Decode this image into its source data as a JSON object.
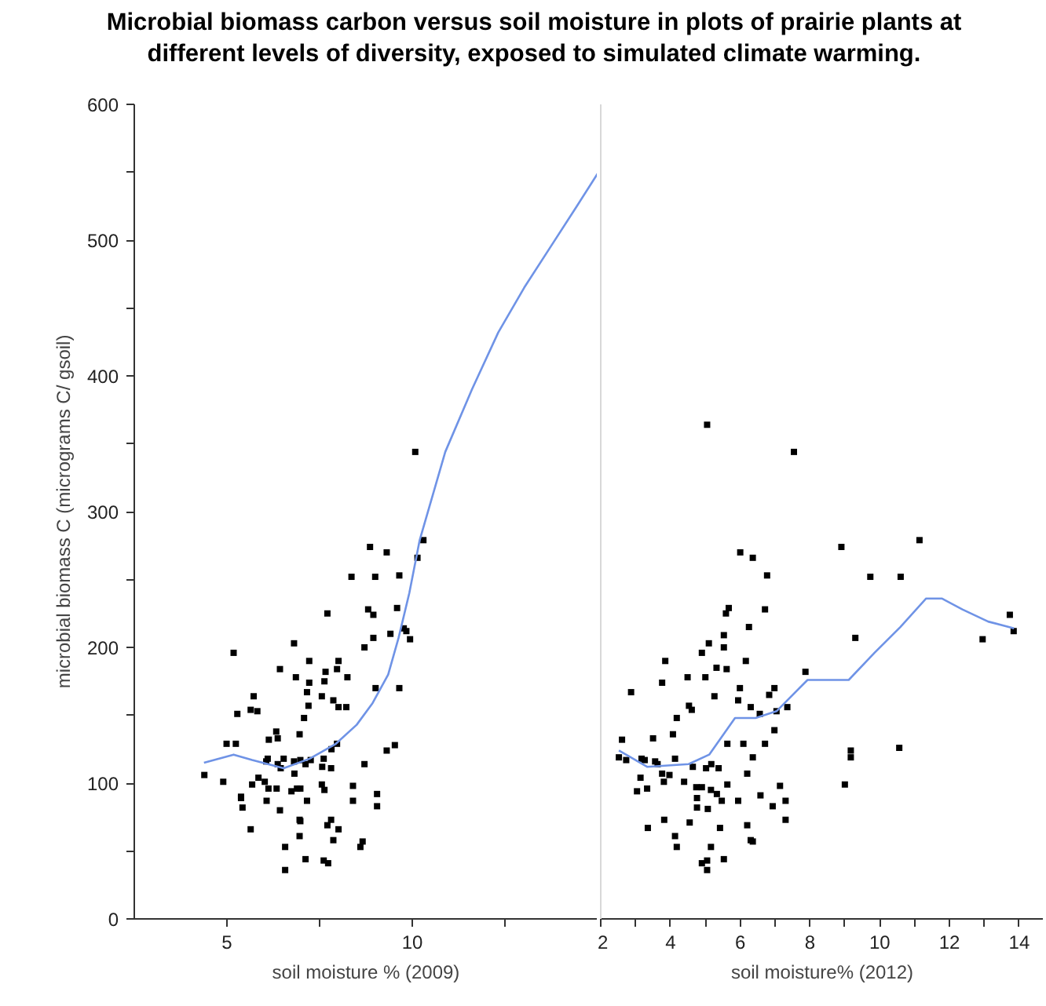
{
  "chart_data": [
    {
      "type": "scatter",
      "title": "Microbial biomass carbon versus soil moisture in plots of prairie plants at different levels of diversity, exposed to simulated climate warming.",
      "xlabel": "soil moisture % (2009)",
      "ylabel": "microbial biomass C (micrograms C/ gsoil)",
      "xlim": [
        2.5,
        15
      ],
      "xticks": [
        5,
        {
          "value": 7.5,
          "label": null
        },
        10,
        {
          "value": 12.5,
          "label": null
        },
        {
          "value": 15,
          "label": null
        }
      ],
      "ylim": [
        0,
        600
      ],
      "yticks": [
        0,
        {
          "value": 50,
          "label": null
        },
        100,
        {
          "value": 150,
          "label": null
        },
        200,
        {
          "value": 250,
          "label": null
        },
        300,
        {
          "value": 350,
          "label": null
        },
        400,
        {
          "value": 450,
          "label": null
        },
        500,
        {
          "value": 550,
          "label": null
        },
        600
      ],
      "grid": false,
      "series": [
        {
          "marker": "square",
          "color": "#000000",
          "x": [
            10.08,
            10.3,
            8.86,
            9.31,
            10.14,
            8.36,
            9.0,
            9.65,
            8.81,
            8.95,
            9.59,
            7.71,
            9.77,
            9.84,
            9.94,
            9.41,
            8.95,
            8.71,
            5.18,
            6.81,
            7.22,
            8.01,
            6.43,
            6.86,
            7.66,
            7.97,
            8.25,
            7.22,
            7.63,
            7.16,
            7.56,
            5.72,
            9.01,
            9.65,
            5.28,
            5.64,
            5.82,
            7.2,
            7.87,
            8.01,
            8.22,
            7.08,
            6.33,
            6.96,
            6.13,
            6.37,
            4.99,
            5.24,
            7.97,
            7.82,
            9.31,
            9.53,
            6.1,
            6.53,
            7.61,
            6.06,
            6.37,
            6.45,
            6.81,
            6.98,
            7.12,
            7.26,
            7.57,
            7.81,
            8.71,
            4.39,
            4.9,
            5.68,
            5.85,
            6.02,
            6.12,
            6.34,
            6.82,
            6.89,
            6.98,
            7.56,
            7.63,
            8.4,
            9.05,
            9.05,
            6.74,
            5.38,
            5.38,
            6.07,
            7.16,
            8.4,
            5.42,
            6.43,
            6.96,
            6.98,
            7.81,
            7.71,
            8.01,
            5.64,
            6.96,
            7.87,
            8.66,
            8.6,
            6.57,
            7.12,
            7.61,
            7.73,
            6.57
          ],
          "values": [
            344,
            279,
            274,
            270,
            266,
            252,
            252,
            253,
            228,
            224,
            229,
            225,
            214,
            212,
            206,
            210,
            207,
            200,
            196,
            203,
            190,
            190,
            184,
            178,
            182,
            184,
            178,
            174,
            175,
            167,
            164,
            164,
            170,
            170,
            151,
            154,
            153,
            157,
            161,
            156,
            156,
            148,
            138,
            136,
            132,
            133,
            129,
            129,
            129,
            125,
            124,
            128,
            118,
            118,
            118,
            116,
            114,
            111,
            116,
            117,
            114,
            117,
            112,
            111,
            114,
            106,
            101,
            99,
            104,
            101,
            96,
            96,
            107,
            96,
            96,
            99,
            95,
            98,
            92,
            83,
            94,
            90,
            89,
            87,
            87,
            87,
            82,
            80,
            73,
            72,
            73,
            69,
            66,
            66,
            61,
            58,
            57,
            53,
            53,
            44,
            43,
            41,
            36
          ]
        },
        {
          "type": "line",
          "marker": "none",
          "color": "#6f93e6",
          "x": [
            4.38,
            5.18,
            5.68,
            6.53,
            7.23,
            7.94,
            8.5,
            8.93,
            9.35,
            9.63,
            9.92,
            10.2,
            10.89,
            11.61,
            12.32,
            13.02,
            13.73,
            14.44,
            15.0
          ],
          "values": [
            115,
            121,
            117,
            111,
            118,
            129,
            143,
            159,
            180,
            207,
            240,
            279,
            344,
            390,
            432,
            465,
            495,
            525,
            549
          ]
        }
      ]
    },
    {
      "type": "scatter",
      "xlabel": "soil moisture% (2012)",
      "xlim": [
        2,
        14.7
      ],
      "xticks": [
        2,
        {
          "value": 3,
          "label": null
        },
        4,
        {
          "value": 5,
          "label": null
        },
        6,
        {
          "value": 7,
          "label": null
        },
        8,
        {
          "value": 9,
          "label": null
        },
        10,
        {
          "value": 11,
          "label": null
        },
        12,
        {
          "value": 13,
          "label": null
        },
        14
      ],
      "ylim": [
        0,
        600
      ],
      "tick_labels": "x",
      "grid": false,
      "series": [
        {
          "marker": "square",
          "color": "#000000",
          "x": [
            5.05,
            7.54,
            8.9,
            11.14,
            6.0,
            6.36,
            6.77,
            9.73,
            10.6,
            5.67,
            5.59,
            6.71,
            13.73,
            6.25,
            5.53,
            5.53,
            5.1,
            4.9,
            9.3,
            12.95,
            13.84,
            3.85,
            6.16,
            5.32,
            5.61,
            7.87,
            3.76,
            4.49,
            5.0,
            2.87,
            5.99,
            6.98,
            5.26,
            6.83,
            5.94,
            4.53,
            4.61,
            6.3,
            6.56,
            7.04,
            7.35,
            4.18,
            6.98,
            4.07,
            2.61,
            3.5,
            5.63,
            6.09,
            6.71,
            9.17,
            9.17,
            10.56,
            2.52,
            2.73,
            3.17,
            3.26,
            3.56,
            3.63,
            4.13,
            6.36,
            4.64,
            5.02,
            5.17,
            5.38,
            3.76,
            3.97,
            6.2,
            3.14,
            3.81,
            4.39,
            5.63,
            4.74,
            4.9,
            7.14,
            3.04,
            3.33,
            5.16,
            5.33,
            4.76,
            5.47,
            5.94,
            6.58,
            7.3,
            9.0,
            4.76,
            5.07,
            6.93,
            3.82,
            4.55,
            7.3,
            3.35,
            5.42,
            6.2,
            4.13,
            6.3,
            6.36,
            4.18,
            5.16,
            5.53,
            4.9,
            5.05,
            5.05
          ],
          "values": [
            364,
            344,
            274,
            279,
            270,
            266,
            253,
            252,
            252,
            229,
            225,
            228,
            224,
            215,
            209,
            200,
            203,
            196,
            207,
            206,
            212,
            190,
            190,
            185,
            184,
            182,
            174,
            178,
            178,
            167,
            170,
            170,
            164,
            165,
            161,
            157,
            154,
            156,
            151,
            153,
            156,
            148,
            139,
            136,
            132,
            133,
            129,
            129,
            129,
            124,
            119,
            126,
            119,
            117,
            118,
            117,
            116,
            114,
            118,
            119,
            112,
            111,
            114,
            111,
            107,
            106,
            107,
            104,
            101,
            101,
            99,
            97,
            97,
            98,
            94,
            96,
            95,
            92,
            89,
            87,
            87,
            91,
            87,
            99,
            82,
            81,
            83,
            73,
            71,
            73,
            67,
            67,
            69,
            61,
            58,
            57,
            53,
            53,
            44,
            41,
            43,
            36
          ]
        },
        {
          "type": "line",
          "marker": "none",
          "color": "#6f93e6",
          "x": [
            2.52,
            3.33,
            4.52,
            5.11,
            5.85,
            6.44,
            7.04,
            7.93,
            8.52,
            9.11,
            9.85,
            10.59,
            11.33,
            11.78,
            12.37,
            13.11,
            13.85
          ],
          "values": [
            124,
            112,
            114,
            121,
            148,
            148,
            153,
            176,
            176,
            176,
            196,
            215,
            236,
            236,
            228,
            219,
            214
          ]
        }
      ]
    }
  ]
}
